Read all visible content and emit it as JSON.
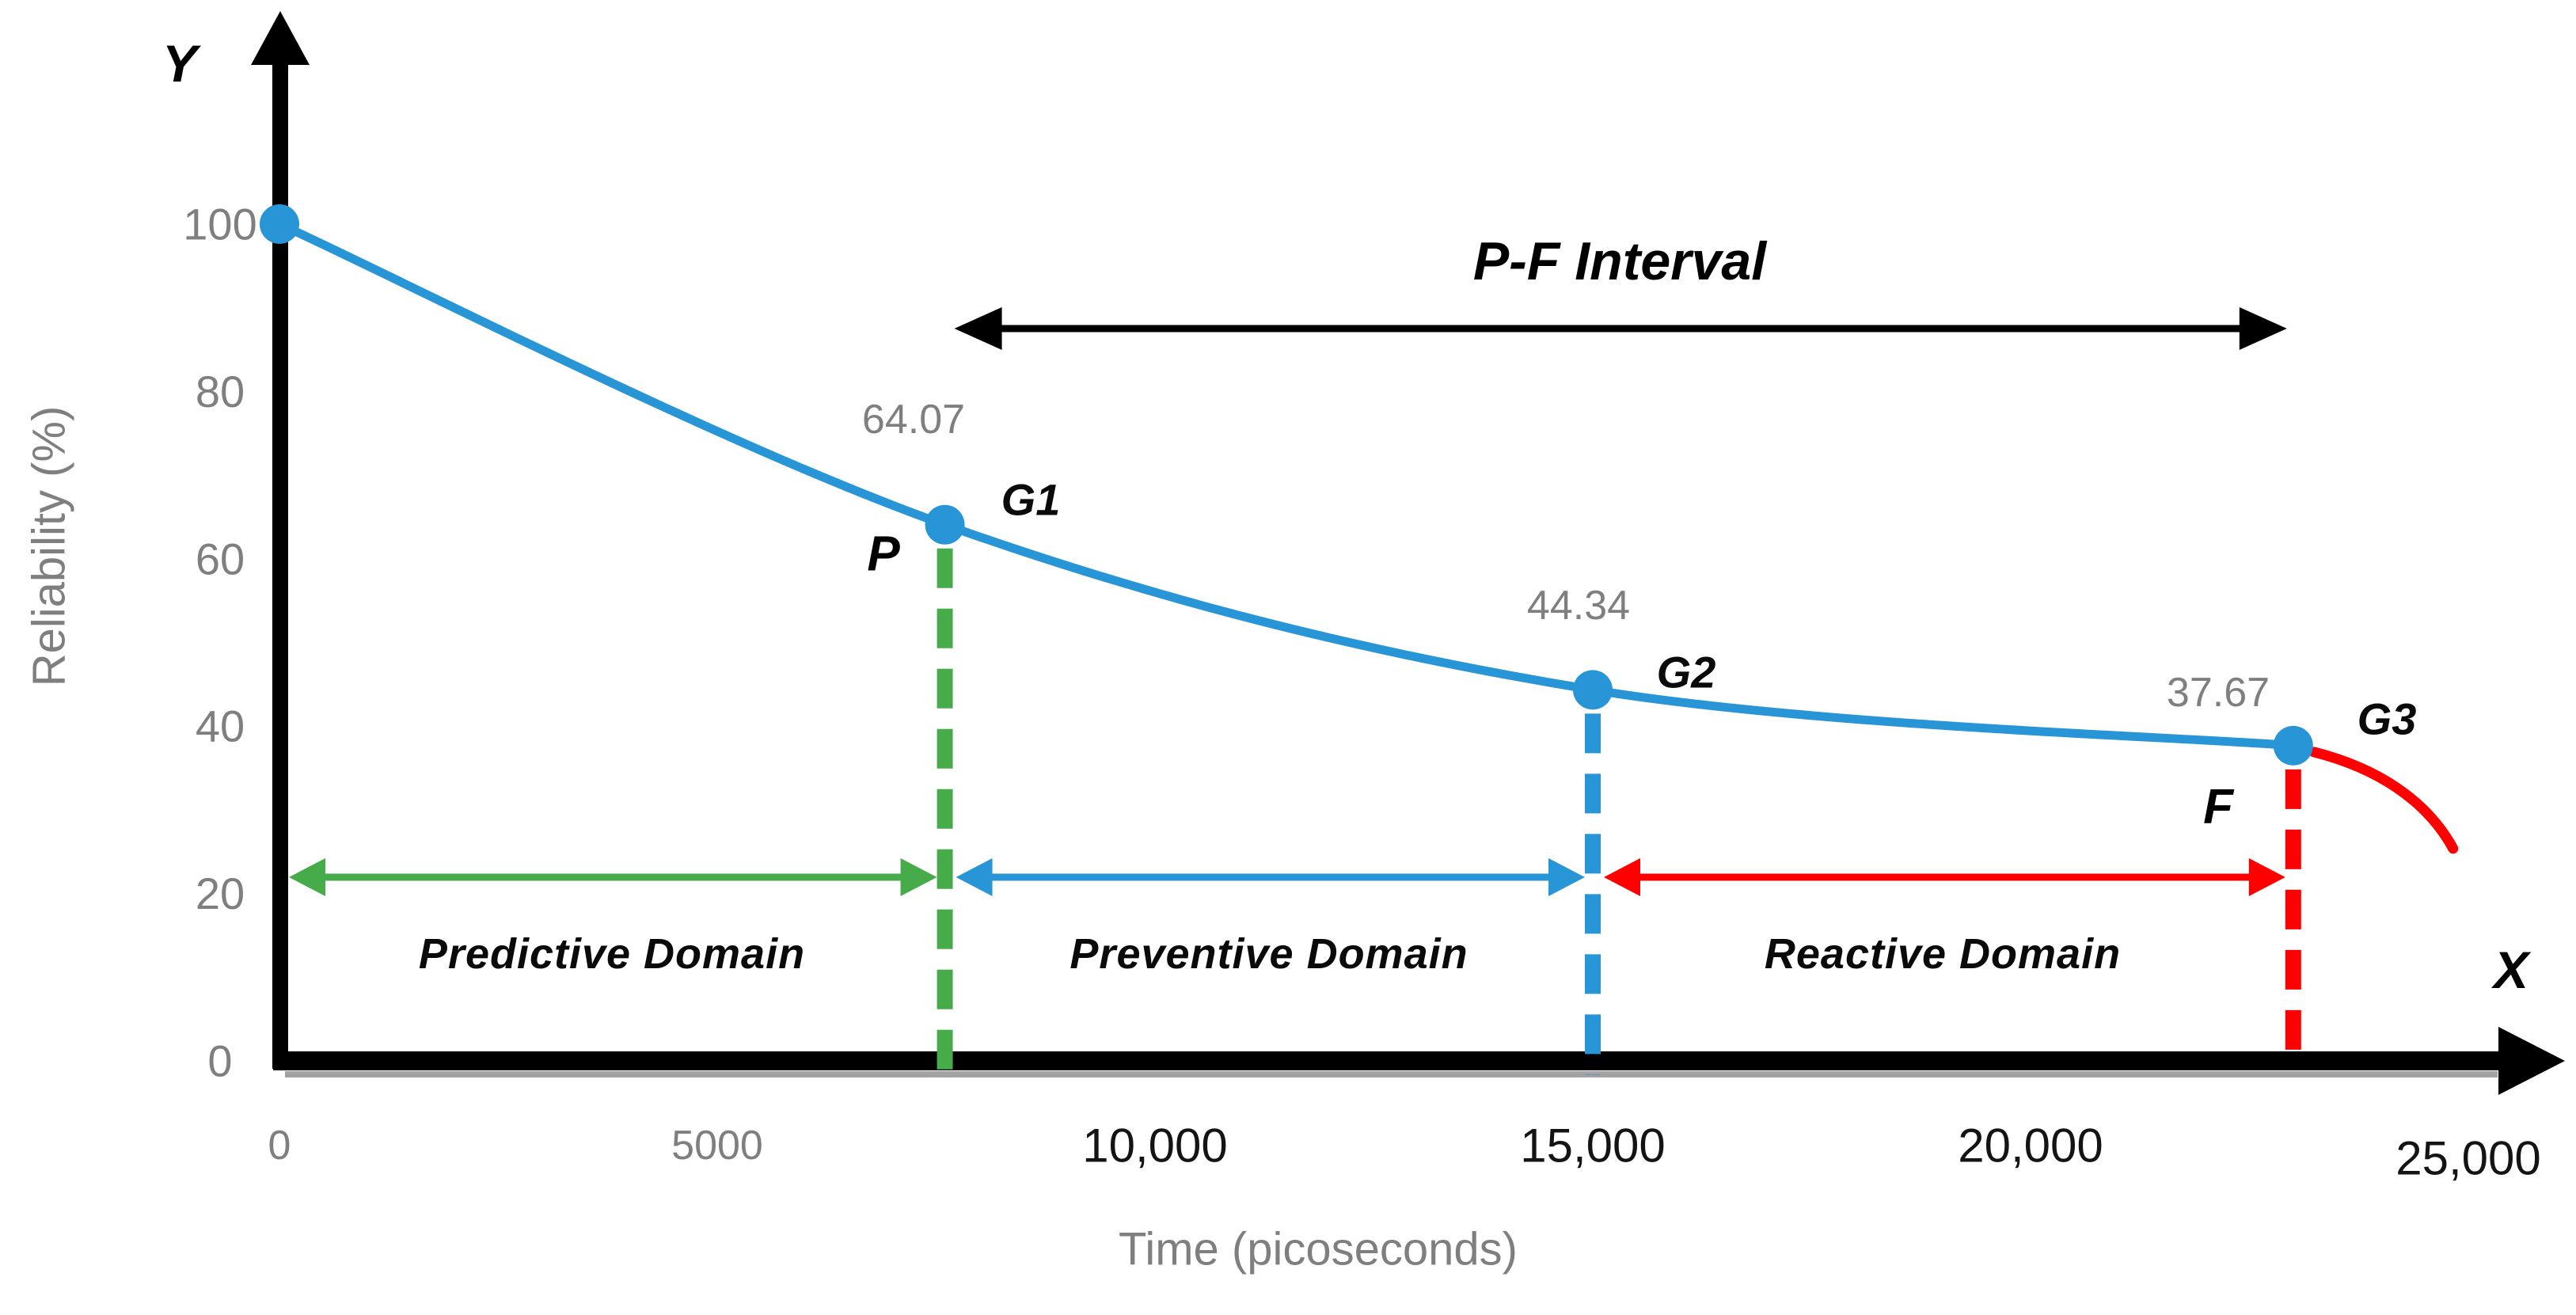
{
  "chart_data": {
    "type": "line",
    "title": "",
    "xlabel": "Time (picoseconds)",
    "ylabel": "Reliability (%)",
    "x_axis_letter": "X",
    "y_axis_letter": "Y",
    "xlim": [
      0,
      25000
    ],
    "ylim": [
      0,
      100
    ],
    "grid": false,
    "legend": "none",
    "x_ticks": [
      {
        "value": 0,
        "label": "0",
        "style": "gray"
      },
      {
        "value": 5000,
        "label": "5000",
        "style": "gray"
      },
      {
        "value": 10000,
        "label": "10,000",
        "style": "black"
      },
      {
        "value": 15000,
        "label": "15,000",
        "style": "black"
      },
      {
        "value": 20000,
        "label": "20,000",
        "style": "black"
      },
      {
        "value": 25000,
        "label": "25,000",
        "style": "black"
      }
    ],
    "y_ticks": [
      {
        "value": 0,
        "label": "0"
      },
      {
        "value": 20,
        "label": "20"
      },
      {
        "value": 40,
        "label": "40"
      },
      {
        "value": 60,
        "label": "60"
      },
      {
        "value": 80,
        "label": "80"
      },
      {
        "value": 100,
        "label": "100"
      }
    ],
    "series": [
      {
        "name": "reliability-degradation-curve",
        "color": "#2795D6",
        "points": [
          {
            "x": 0,
            "y": 100
          },
          {
            "x": 7600,
            "y": 64.07,
            "value_label": "64.07",
            "gate_label": "G1",
            "point_letter": "P",
            "dashed_line_color": "#46AB49"
          },
          {
            "x": 15000,
            "y": 44.34,
            "value_label": "44.34",
            "gate_label": "G2",
            "dashed_line_color": "#2795D6"
          },
          {
            "x": 23000,
            "y": 37.67,
            "value_label": "37.67",
            "gate_label": "G3",
            "point_letter": "F",
            "dashed_line_color": "#FF0000"
          }
        ]
      },
      {
        "name": "failure-drop-curve",
        "color": "#FF0000"
      }
    ],
    "interval_label": "P-F Interval",
    "domains": [
      {
        "label": "Predictive Domain",
        "from_x": 0,
        "to_x": 7600,
        "arrow_color": "#46AB49"
      },
      {
        "label": "Preventive Domain",
        "from_x": 7600,
        "to_x": 15000,
        "arrow_color": "#2795D6"
      },
      {
        "label": "Reactive Domain",
        "from_x": 15000,
        "to_x": 23000,
        "arrow_color": "#FF0000"
      }
    ],
    "colors": {
      "axis": "#000000",
      "axis_shadow": "#A3A3A3",
      "tick_gray": "#7f7f7f",
      "tick_black": "#141414",
      "interval_arrow": "#000000"
    }
  }
}
